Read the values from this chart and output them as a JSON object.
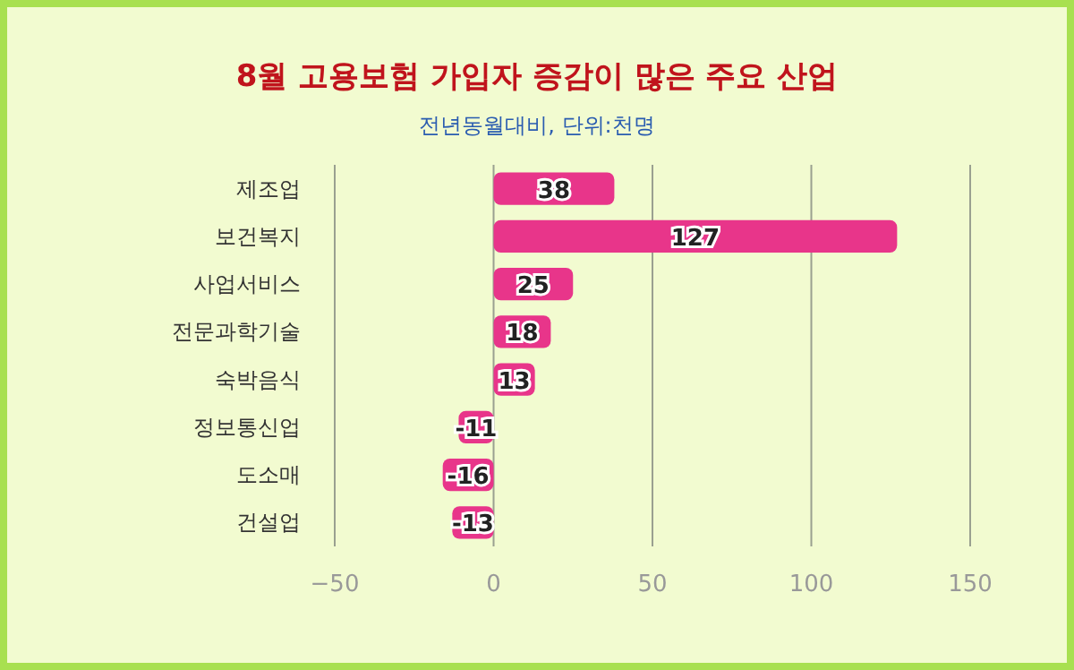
{
  "chart_data": {
    "type": "bar",
    "orientation": "horizontal",
    "title": "8월 고용보험 가입자 증감이 많은 주요 산업",
    "subtitle": "전년동월대비, 단위:천명",
    "categories": [
      "제조업",
      "보건복지",
      "사업서비스",
      "전문과학기술",
      "숙박음식",
      "정보통신업",
      "도소매",
      "건설업"
    ],
    "values": [
      38,
      127,
      25,
      18,
      13,
      -11,
      -16,
      -13
    ],
    "color": "#e8358a",
    "xlim": [
      -50,
      150
    ],
    "xticks": [
      -50,
      0,
      50,
      100,
      150
    ],
    "grid": "x",
    "data_labels": true
  }
}
